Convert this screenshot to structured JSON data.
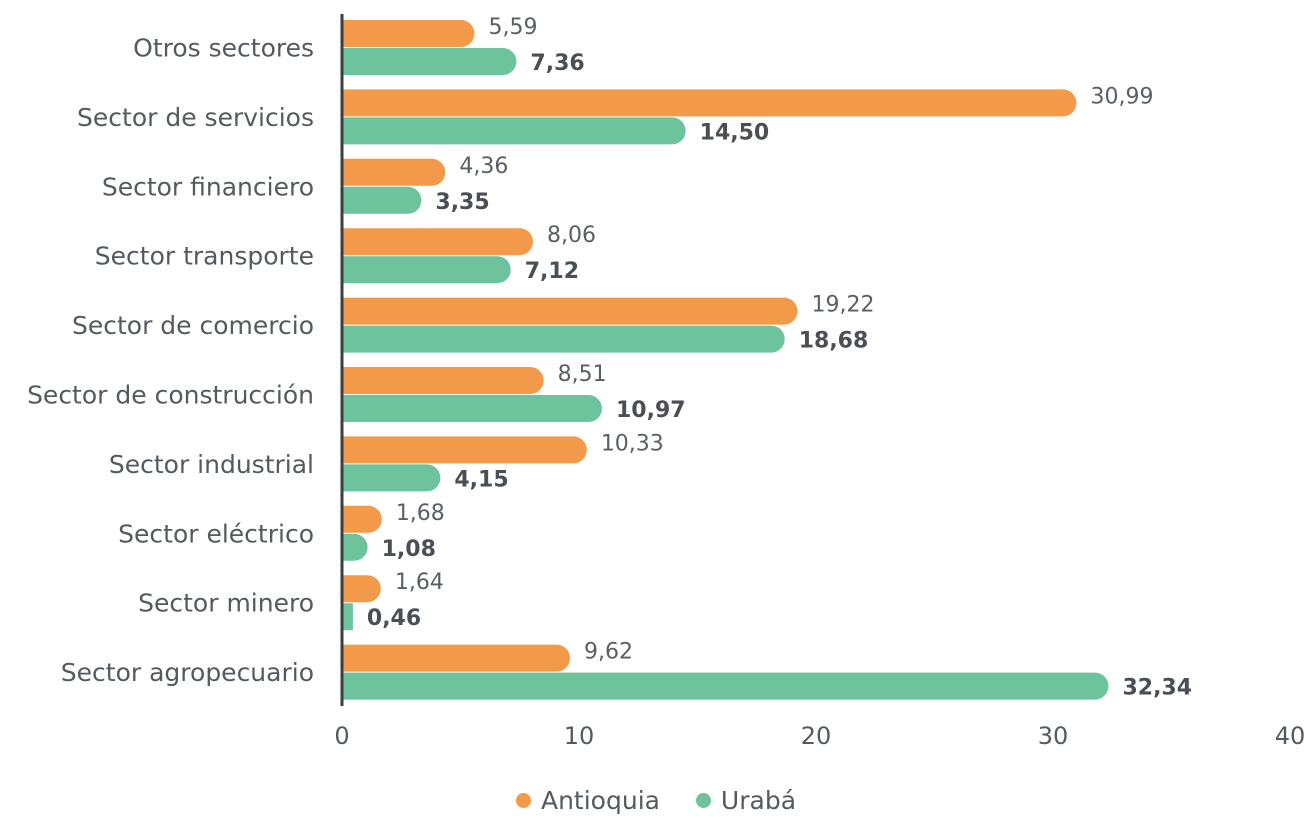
{
  "colors": {
    "antioquia": "#f29a4a",
    "uraba": "#6cc39c",
    "axis": "#3a3f44"
  },
  "legend": {
    "antioquia_label": "Antioquia",
    "uraba_label": "Urabá"
  },
  "chart_data": {
    "type": "bar",
    "orientation": "horizontal",
    "categories": [
      "Otros sectores",
      "Sector de servicios",
      "Sector financiero",
      "Sector transporte",
      "Sector de comercio",
      "Sector de construcción",
      "Sector industrial",
      "Sector eléctrico",
      "Sector minero",
      "Sector agropecuario"
    ],
    "series": [
      {
        "name": "Antioquia",
        "values": [
          5.59,
          30.99,
          4.36,
          8.06,
          19.22,
          8.51,
          10.33,
          1.68,
          1.64,
          9.62
        ],
        "labels": [
          "5,59",
          "30,99",
          "4,36",
          "8,06",
          "19,22",
          "8,51",
          "10,33",
          "1,68",
          "1,64",
          "9,62"
        ]
      },
      {
        "name": "Urabá",
        "values": [
          7.36,
          14.5,
          3.35,
          7.12,
          18.68,
          10.97,
          4.15,
          1.08,
          0.46,
          32.34
        ],
        "labels": [
          "7,36",
          "14,50",
          "3,35",
          "7,12",
          "18,68",
          "10,97",
          "4,15",
          "1,08",
          "0,46",
          "32,34"
        ]
      }
    ],
    "xlim": [
      0,
      40
    ],
    "xticks": [
      "0",
      "10",
      "20",
      "30",
      "40"
    ],
    "grid": false,
    "legend_position": "bottom-center",
    "title": "",
    "xlabel": "",
    "ylabel": ""
  }
}
